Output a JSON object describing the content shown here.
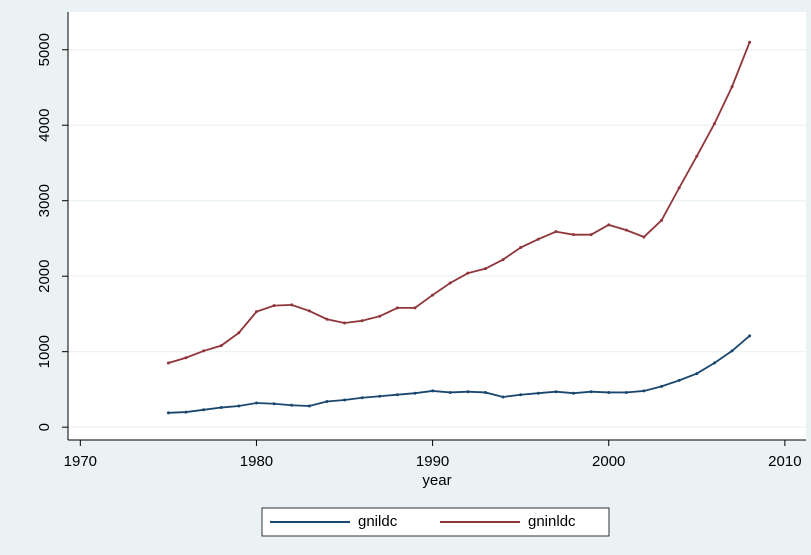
{
  "chart_data": {
    "type": "line",
    "x": [
      1975,
      1976,
      1977,
      1978,
      1979,
      1980,
      1981,
      1982,
      1983,
      1984,
      1985,
      1986,
      1987,
      1988,
      1989,
      1990,
      1991,
      1992,
      1993,
      1994,
      1995,
      1996,
      1997,
      1998,
      1999,
      2000,
      2001,
      2002,
      2003,
      2004,
      2005,
      2006,
      2007,
      2008
    ],
    "series": [
      {
        "name": "gnildc",
        "color": "#1a476f",
        "values": [
          190,
          200,
          230,
          260,
          280,
          320,
          310,
          290,
          280,
          340,
          360,
          390,
          410,
          430,
          450,
          480,
          460,
          470,
          460,
          400,
          430,
          450,
          470,
          450,
          470,
          460,
          460,
          480,
          540,
          620,
          710,
          850,
          1010,
          1210
        ]
      },
      {
        "name": "gninldc",
        "color": "#90353b",
        "values": [
          850,
          920,
          1010,
          1080,
          1250,
          1530,
          1610,
          1620,
          1540,
          1430,
          1380,
          1410,
          1470,
          1580,
          1580,
          1750,
          1910,
          2040,
          2100,
          2220,
          2380,
          2490,
          2590,
          2550,
          2550,
          2680,
          2610,
          2520,
          2740,
          3170,
          3590,
          4020,
          4510,
          5100
        ]
      }
    ],
    "x_label": "year",
    "xlim": [
      1969.3,
      2011.2
    ],
    "xticks": [
      1970,
      1980,
      1990,
      2000,
      2010
    ],
    "ylim": [
      -170,
      5500
    ],
    "yticks": [
      0,
      1000,
      2000,
      3000,
      4000,
      5000
    ],
    "grid": true,
    "legend": "bottom"
  }
}
